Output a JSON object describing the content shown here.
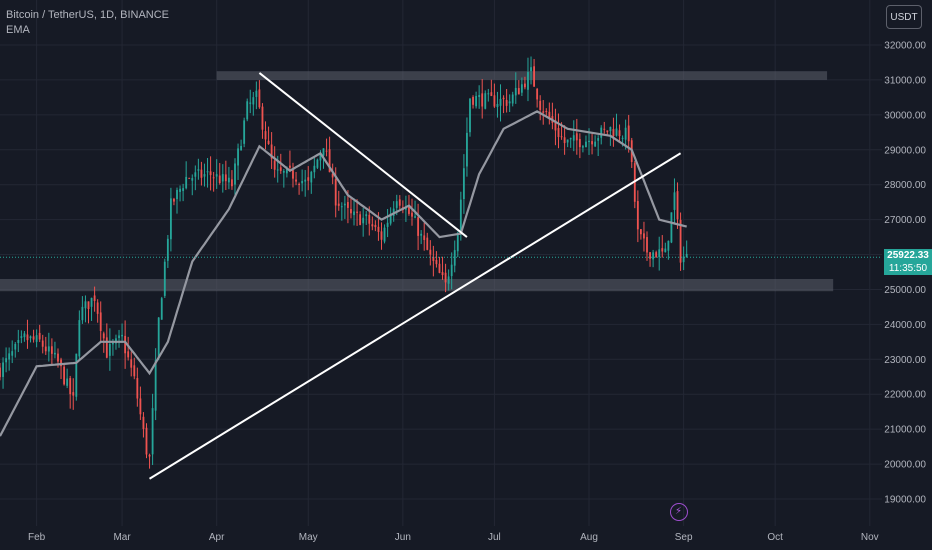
{
  "legend": {
    "symbol_line": "Bitcoin / TetherUS, 1D, BINANCE",
    "indicator": "EMA"
  },
  "currency_button": "USDT",
  "last_price": {
    "value": "25922.33",
    "countdown": "11:35:50"
  },
  "alert_icon": "lightning-icon",
  "colors": {
    "background": "#161a25",
    "grid": "#232734",
    "up": "#26a69a",
    "down": "#ef5350",
    "ema": "#9598a1",
    "trendline": "#ffffff",
    "zone": "#5d606b"
  },
  "chart_data": {
    "type": "candlestick",
    "title": "Bitcoin / TetherUS, 1D, BINANCE",
    "xlabel": "",
    "ylabel": "",
    "x_ticks": [
      "Feb",
      "Mar",
      "Apr",
      "May",
      "Jun",
      "Jul",
      "Aug",
      "Sep",
      "Oct",
      "Nov"
    ],
    "y_ticks": [
      19000,
      20000,
      21000,
      22000,
      23000,
      24000,
      25000,
      26000,
      27000,
      28000,
      29000,
      30000,
      31000,
      32000
    ],
    "y_tick_labels": [
      "19000.00",
      "20000.00",
      "21000.00",
      "22000.00",
      "23000.00",
      "24000.00",
      "25000.00",
      "26000.00",
      "27000.00",
      "28000.00",
      "29000.00",
      "30000.00",
      "31000.00",
      "32000.00"
    ],
    "ylim": [
      18500,
      32500
    ],
    "x_range": [
      "2023-01-20",
      "2023-11-05"
    ],
    "grid": true,
    "close_anchors": [
      [
        "2023-01-20",
        22700
      ],
      [
        "2023-01-28",
        23600
      ],
      [
        "2023-02-02",
        23500
      ],
      [
        "2023-02-08",
        22900
      ],
      [
        "2023-02-13",
        21800
      ],
      [
        "2023-02-15",
        24300
      ],
      [
        "2023-02-20",
        24800
      ],
      [
        "2023-02-24",
        23200
      ],
      [
        "2023-03-01",
        23600
      ],
      [
        "2023-03-05",
        22400
      ],
      [
        "2023-03-09",
        20400
      ],
      [
        "2023-03-10",
        20150
      ],
      [
        "2023-03-13",
        24100
      ],
      [
        "2023-03-17",
        27400
      ],
      [
        "2023-03-22",
        28200
      ],
      [
        "2023-03-30",
        28300
      ],
      [
        "2023-04-06",
        28000
      ],
      [
        "2023-04-11",
        30200
      ],
      [
        "2023-04-14",
        30500
      ],
      [
        "2023-04-20",
        28300
      ],
      [
        "2023-04-26",
        28300
      ],
      [
        "2023-05-01",
        28000
      ],
      [
        "2023-05-06",
        29200
      ],
      [
        "2023-05-10",
        27600
      ],
      [
        "2023-05-15",
        27100
      ],
      [
        "2023-05-20",
        27000
      ],
      [
        "2023-05-25",
        26500
      ],
      [
        "2023-05-30",
        27700
      ],
      [
        "2023-06-05",
        26900
      ],
      [
        "2023-06-10",
        25900
      ],
      [
        "2023-06-15",
        25100
      ],
      [
        "2023-06-19",
        26700
      ],
      [
        "2023-06-21",
        28500
      ],
      [
        "2023-06-23",
        30500
      ],
      [
        "2023-06-30",
        30400
      ],
      [
        "2023-07-06",
        30400
      ],
      [
        "2023-07-13",
        31200
      ],
      [
        "2023-07-16",
        30300
      ],
      [
        "2023-07-24",
        29200
      ],
      [
        "2023-08-01",
        29300
      ],
      [
        "2023-08-08",
        29600
      ],
      [
        "2023-08-14",
        29400
      ],
      [
        "2023-08-17",
        26600
      ],
      [
        "2023-08-20",
        26100
      ],
      [
        "2023-08-26",
        26000
      ],
      [
        "2023-08-29",
        27700
      ],
      [
        "2023-08-31",
        25950
      ],
      [
        "2023-09-02",
        25922
      ]
    ],
    "ema_anchors": [
      [
        "2023-01-20",
        20800
      ],
      [
        "2023-02-01",
        22800
      ],
      [
        "2023-02-14",
        22900
      ],
      [
        "2023-02-22",
        23500
      ],
      [
        "2023-03-02",
        23500
      ],
      [
        "2023-03-10",
        22600
      ],
      [
        "2023-03-16",
        23500
      ],
      [
        "2023-03-24",
        25800
      ],
      [
        "2023-04-05",
        27300
      ],
      [
        "2023-04-15",
        29100
      ],
      [
        "2023-04-25",
        28400
      ],
      [
        "2023-05-05",
        28900
      ],
      [
        "2023-05-14",
        27700
      ],
      [
        "2023-05-25",
        27000
      ],
      [
        "2023-06-03",
        27400
      ],
      [
        "2023-06-13",
        26500
      ],
      [
        "2023-06-20",
        26600
      ],
      [
        "2023-06-26",
        28300
      ],
      [
        "2023-07-04",
        29600
      ],
      [
        "2023-07-15",
        30100
      ],
      [
        "2023-07-25",
        29600
      ],
      [
        "2023-08-08",
        29400
      ],
      [
        "2023-08-15",
        29000
      ],
      [
        "2023-08-24",
        27000
      ],
      [
        "2023-09-02",
        26800
      ]
    ],
    "annotations": [
      {
        "type": "zone",
        "x1": "2023-04-01",
        "x2": "2023-10-18",
        "y1": 31000,
        "y2": 31250
      },
      {
        "type": "zone",
        "x1": "2023-01-20",
        "x2": "2023-10-20",
        "y1": 24950,
        "y2": 25300
      },
      {
        "type": "trendline",
        "x1": "2023-03-10",
        "y1": 19580,
        "x2": "2023-08-31",
        "y2": 28900
      },
      {
        "type": "trendline",
        "x1": "2023-04-15",
        "y1": 31200,
        "x2": "2023-06-22",
        "y2": 26500
      }
    ]
  }
}
